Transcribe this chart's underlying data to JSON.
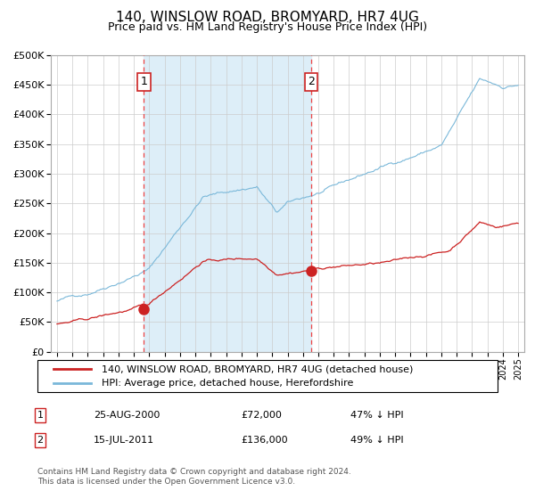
{
  "title": "140, WINSLOW ROAD, BROMYARD, HR7 4UG",
  "subtitle": "Price paid vs. HM Land Registry's House Price Index (HPI)",
  "legend_line1": "140, WINSLOW ROAD, BROMYARD, HR7 4UG (detached house)",
  "legend_line2": "HPI: Average price, detached house, Herefordshire",
  "annotation1_label": "1",
  "annotation1_date": "25-AUG-2000",
  "annotation1_price": "£72,000",
  "annotation1_hpi": "47% ↓ HPI",
  "annotation1_year": 2000.65,
  "annotation1_value": 72000,
  "annotation2_label": "2",
  "annotation2_date": "15-JUL-2011",
  "annotation2_price": "£136,000",
  "annotation2_hpi": "49% ↓ HPI",
  "annotation2_year": 2011.54,
  "annotation2_value": 136000,
  "copyright": "Contains HM Land Registry data © Crown copyright and database right 2024.\nThis data is licensed under the Open Government Licence v3.0.",
  "ylim": [
    0,
    500000
  ],
  "yticks": [
    0,
    50000,
    100000,
    150000,
    200000,
    250000,
    300000,
    350000,
    400000,
    450000,
    500000
  ],
  "hpi_color": "#7ab8d9",
  "hpi_fill": "#ddeef8",
  "price_color": "#cc2222",
  "dot_color": "#cc2222",
  "vline_color": "#ee4444",
  "background_color": "#ffffff",
  "grid_color": "#cccccc",
  "xlim_left": 1994.6,
  "xlim_right": 2025.4
}
